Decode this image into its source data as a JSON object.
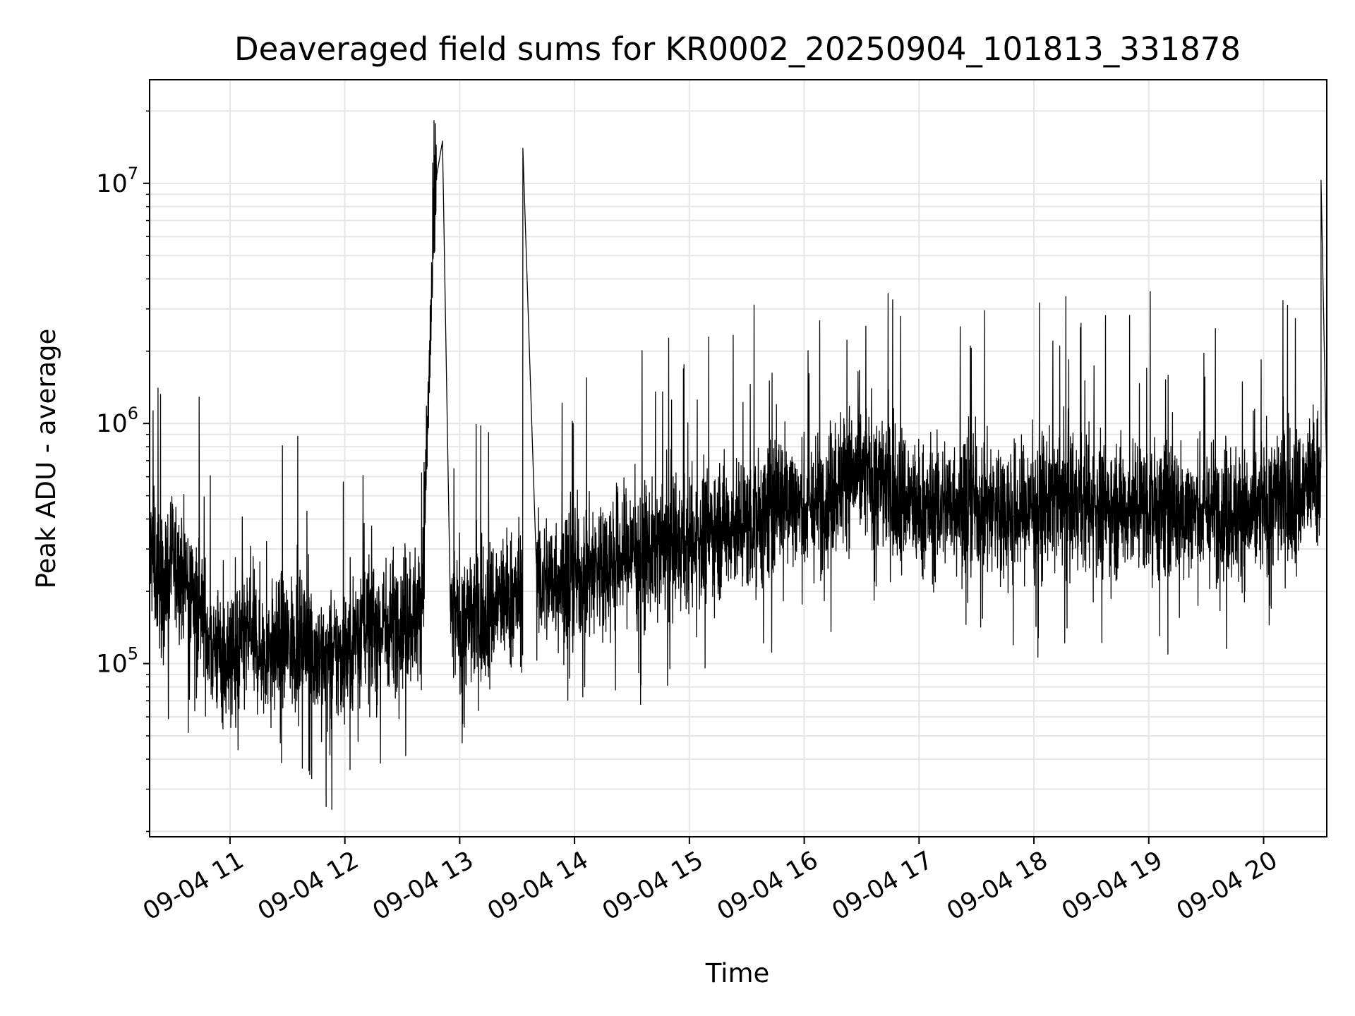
{
  "chart_data": {
    "type": "line",
    "title": "Deaveraged field sums for KR0002_20250904_101813_331878",
    "xlabel": "Time",
    "ylabel": "Peak ADU - average",
    "yscale": "log",
    "ylim": [
      19000,
      27000000
    ],
    "xlim": [
      "09-04 10:18",
      "09-04 20:33"
    ],
    "grid": "major and minor",
    "line_color": "#000000",
    "grid_color": "#e6e6e6",
    "x_ticks": [
      "09-04 11",
      "09-04 12",
      "09-04 13",
      "09-04 14",
      "09-04 15",
      "09-04 16",
      "09-04 17",
      "09-04 18",
      "09-04 19",
      "09-04 20"
    ],
    "y_ticks": [
      {
        "value": 100000,
        "base": "10",
        "exp": "5"
      },
      {
        "value": 1000000,
        "base": "10",
        "exp": "6"
      },
      {
        "value": 10000000,
        "base": "10",
        "exp": "7"
      }
    ],
    "x": [
      "10:18",
      "10:25",
      "10:30",
      "10:40",
      "10:50",
      "11:00",
      "11:10",
      "11:20",
      "11:30",
      "11:40",
      "11:50",
      "12:00",
      "12:10",
      "12:20",
      "12:30",
      "12:40",
      "12:48",
      "12:51",
      "12:55",
      "13:00",
      "13:10",
      "13:20",
      "13:30",
      "13:33",
      "13:40",
      "13:50",
      "14:00",
      "14:10",
      "14:20",
      "14:30",
      "14:40",
      "14:50",
      "15:00",
      "15:10",
      "15:20",
      "15:30",
      "15:40",
      "15:50",
      "16:00",
      "16:10",
      "16:20",
      "16:30",
      "16:40",
      "16:50",
      "17:00",
      "17:10",
      "17:20",
      "17:30",
      "17:40",
      "17:50",
      "18:00",
      "18:10",
      "18:20",
      "18:30",
      "18:40",
      "18:50",
      "19:00",
      "19:10",
      "19:20",
      "19:30",
      "19:40",
      "19:50",
      "20:00",
      "20:10",
      "20:20",
      "20:25",
      "20:30",
      "20:33"
    ],
    "values": [
      300000,
      200000,
      260000,
      210000,
      120000,
      100000,
      130000,
      110000,
      120000,
      125000,
      100000,
      110000,
      150000,
      140000,
      160000,
      160000,
      10800000,
      15000000,
      160000,
      150000,
      160000,
      180000,
      190000,
      14000000,
      210000,
      230000,
      230000,
      250000,
      270000,
      300000,
      290000,
      310000,
      300000,
      360000,
      380000,
      380000,
      420000,
      520000,
      420000,
      480000,
      600000,
      620000,
      580000,
      520000,
      430000,
      450000,
      480000,
      470000,
      450000,
      420000,
      460000,
      480000,
      450000,
      450000,
      440000,
      460000,
      450000,
      440000,
      430000,
      420000,
      450000,
      400000,
      450000,
      520000,
      500000,
      600000,
      10300000,
      600000
    ]
  }
}
